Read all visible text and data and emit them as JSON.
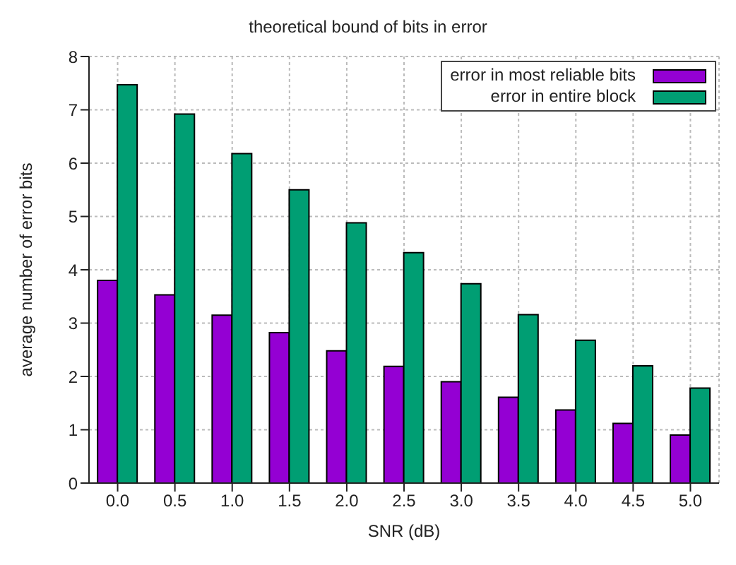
{
  "chart_data": {
    "type": "bar",
    "title": "theoretical bound of bits in error",
    "xlabel": "SNR (dB)",
    "ylabel": "average number of error bits",
    "categories": [
      "0.0",
      "0.5",
      "1.0",
      "1.5",
      "2.0",
      "2.5",
      "3.0",
      "3.5",
      "4.0",
      "4.5",
      "5.0"
    ],
    "series": [
      {
        "name": "error in most reliable bits",
        "color": "#9400d3",
        "values": [
          3.8,
          3.53,
          3.15,
          2.82,
          2.48,
          2.19,
          1.9,
          1.61,
          1.37,
          1.12,
          0.9
        ]
      },
      {
        "name": "error in entire block",
        "color": "#009e73",
        "values": [
          7.47,
          6.92,
          6.18,
          5.5,
          4.88,
          4.32,
          3.74,
          3.16,
          2.68,
          2.2,
          1.78
        ]
      }
    ],
    "ylim": [
      0,
      8
    ],
    "yticks": [
      0,
      1,
      2,
      3,
      4,
      5,
      6,
      7,
      8
    ],
    "grid": true,
    "legend": "top right"
  }
}
